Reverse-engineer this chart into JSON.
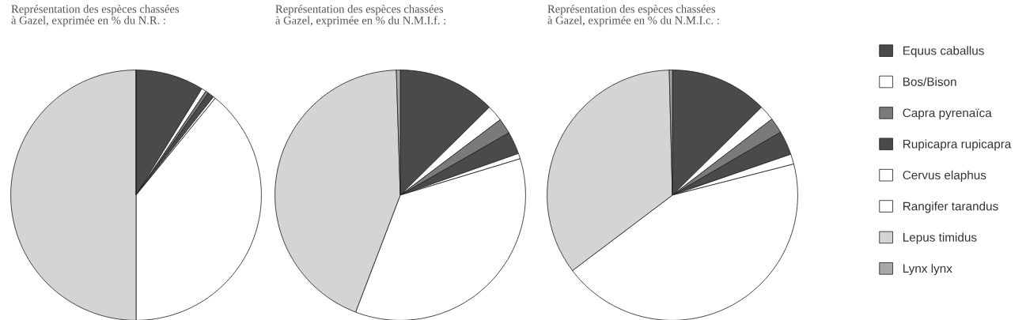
{
  "chart_data": [
    {
      "type": "pie",
      "title": "Représentation des espèces chassées\nà Gazel, exprimée en % du N.R. :",
      "categories": [
        "Equus caballus",
        "Bos/Bison",
        "Capra pyrenaïca",
        "Rupicapra rupicapra",
        "Cervus elaphus",
        "Rangifer tarandus",
        "Lepus timidus",
        "Lynx lynx"
      ],
      "values": [
        8.8,
        0.6,
        0.4,
        0.8,
        0.3,
        39.1,
        50,
        0
      ],
      "colors": [
        "#4a4a4a",
        "#ffffff",
        "#7a7a7a",
        "#4a4a4a",
        "#ffffff",
        "#ffffff",
        "#d4d4d4",
        "#a8a8a8"
      ],
      "legend": "right"
    },
    {
      "type": "pie",
      "title": "Représentation des espèces chassées\nà Gazel, exprimée en % du N.M.I.f. :",
      "categories": [
        null,
        null,
        null,
        null,
        null,
        null,
        null,
        null
      ],
      "values": [
        12.6,
        2.1,
        2,
        2.9,
        0.7,
        35.5,
        43.7,
        0.5
      ],
      "colors": [
        "#4a4a4a",
        "#ffffff",
        "#7a7a7a",
        "#4a4a4a",
        "#ffffff",
        "#ffffff",
        "#d4d4d4",
        "#a8a8a8"
      ]
    },
    {
      "type": "pie",
      "title": "Représentation des espèces chassées\nà Gazel, exprimée en % du N.M.I.c. :",
      "categories": [
        null,
        null,
        null,
        null,
        null,
        null,
        null,
        null
      ],
      "values": [
        12.6,
        2,
        2,
        3.1,
        1.3,
        43.7,
        34.9,
        0.4
      ],
      "colors": [
        "#4a4a4a",
        "#ffffff",
        "#7a7a7a",
        "#4a4a4a",
        "#ffffff",
        "#ffffff",
        "#d4d4d4",
        "#a8a8a8"
      ]
    }
  ]
}
